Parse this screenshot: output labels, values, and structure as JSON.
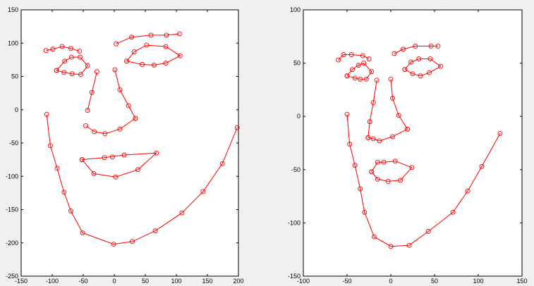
{
  "chart_data": [
    {
      "type": "line",
      "title": "",
      "xlabel": "",
      "ylabel": "",
      "xlim": [
        -150,
        200
      ],
      "ylim": [
        -250,
        150
      ],
      "grid": false,
      "x_ticks": [
        -150,
        -100,
        -50,
        0,
        50,
        100,
        150,
        200
      ],
      "y_ticks": [
        -250,
        -200,
        -150,
        -100,
        -50,
        0,
        50,
        100,
        150
      ],
      "x_tick_labels": [
        "-150",
        "-100",
        "-50",
        "0",
        "50",
        "100",
        "150",
        "200"
      ],
      "y_tick_labels": [
        "-250",
        "-200",
        "-150",
        "-100",
        "-50",
        "0",
        "50",
        "100",
        "150"
      ],
      "series": [
        {
          "label": "jaw",
          "color": "#ff0000",
          "marker": "circle",
          "x": [
            -109,
            -103,
            -92,
            -81,
            -70,
            -51,
            -1,
            29,
            66,
            109,
            143,
            174,
            198
          ],
          "y": [
            -7,
            -54,
            -88,
            -124,
            -152,
            -185,
            -202,
            -198,
            -182,
            -155,
            -123,
            -81,
            -27
          ]
        },
        {
          "label": "left-brow",
          "color": "#ff0000",
          "marker": "circle",
          "x": [
            -110,
            -99,
            -84,
            -70,
            -56
          ],
          "y": [
            89,
            91,
            95,
            92,
            88
          ]
        },
        {
          "label": "right-brow",
          "color": "#ff0000",
          "marker": "circle",
          "x": [
            3,
            28,
            59,
            84,
            105
          ],
          "y": [
            99,
            109,
            112,
            112,
            114
          ]
        },
        {
          "label": "nose-bridge",
          "color": "#ff0000",
          "marker": "circle",
          "x": [
            -28,
            -36,
            -43
          ],
          "y": [
            57,
            26,
            -1
          ]
        },
        {
          "label": "nose-base",
          "color": "#ff0000",
          "marker": "circle",
          "x": [
            -46,
            -32,
            -15,
            9,
            34
          ],
          "y": [
            -24,
            -33,
            -36,
            -29,
            -13
          ]
        },
        {
          "label": "nose-right",
          "color": "#ff0000",
          "marker": "circle",
          "x": [
            1,
            9,
            23,
            34
          ],
          "y": [
            60,
            30,
            6,
            -13
          ]
        },
        {
          "label": "left-eye",
          "color": "#ff0000",
          "marker": "circle",
          "x": [
            -93,
            -80,
            -69,
            -55,
            -43,
            -54,
            -68,
            -81,
            -93
          ],
          "y": [
            59,
            73,
            79,
            79,
            66,
            53,
            54,
            56,
            59
          ]
        },
        {
          "label": "right-eye",
          "color": "#ff0000",
          "marker": "circle",
          "x": [
            20,
            32,
            52,
            83,
            106,
            83,
            64,
            45,
            20
          ],
          "y": [
            73,
            87,
            97,
            95,
            81,
            70,
            67,
            68,
            73
          ]
        },
        {
          "label": "mouth-outer",
          "color": "#ff0000",
          "marker": "circle",
          "x": [
            -52,
            -33,
            2,
            38,
            68,
            16,
            -16,
            -52
          ],
          "y": [
            -75,
            -96,
            -101,
            -90,
            -65,
            -68,
            -72,
            -75
          ]
        },
        {
          "label": "mouth-inner",
          "color": "#ff0000",
          "marker": "circle",
          "x": [
            -3
          ],
          "y": [
            -71
          ]
        }
      ]
    },
    {
      "type": "line",
      "title": "",
      "xlabel": "",
      "ylabel": "",
      "xlim": [
        -100,
        150
      ],
      "ylim": [
        -150,
        100
      ],
      "grid": false,
      "x_ticks": [
        -100,
        -50,
        0,
        50,
        100,
        150
      ],
      "y_ticks": [
        -150,
        -100,
        -50,
        0,
        50,
        100
      ],
      "x_tick_labels": [
        "-100",
        "-50",
        "0",
        "50",
        "100",
        "150"
      ],
      "y_tick_labels": [
        "-150",
        "-100",
        "-50",
        "0",
        "50",
        "100"
      ],
      "series": [
        {
          "label": "jaw",
          "color": "#ff0000",
          "marker": "circle",
          "x": [
            -50,
            -47,
            -41,
            -35,
            -30,
            -19,
            0,
            21,
            43,
            71,
            88,
            104,
            125
          ],
          "y": [
            2,
            -26,
            -46,
            -68,
            -90,
            -113,
            -122,
            -121,
            -108,
            -90,
            -70,
            -47,
            -16
          ]
        },
        {
          "label": "left-brow",
          "color": "#ff0000",
          "marker": "circle",
          "x": [
            -60,
            -54,
            -45,
            -32,
            -25
          ],
          "y": [
            53,
            58,
            58,
            57,
            54
          ]
        },
        {
          "label": "right-brow",
          "color": "#ff0000",
          "marker": "circle",
          "x": [
            4,
            14,
            28,
            46,
            54
          ],
          "y": [
            59,
            63,
            66,
            66,
            66
          ]
        },
        {
          "label": "nose-bridge",
          "color": "#ff0000",
          "marker": "circle",
          "x": [
            -16,
            -20,
            -24,
            -26
          ],
          "y": [
            34,
            13,
            -5,
            -20
          ]
        },
        {
          "label": "nose-base",
          "color": "#ff0000",
          "marker": "circle",
          "x": [
            -26,
            -20,
            -13,
            2,
            19
          ],
          "y": [
            -20,
            -21,
            -23,
            -19,
            -12
          ]
        },
        {
          "label": "nose-right",
          "color": "#ff0000",
          "marker": "circle",
          "x": [
            0,
            2,
            9,
            19
          ],
          "y": [
            35,
            17,
            1,
            -12
          ]
        },
        {
          "label": "left-eye",
          "color": "#ff0000",
          "marker": "circle",
          "x": [
            -50,
            -44,
            -37,
            -31,
            -22,
            -28,
            -35,
            -41,
            -50
          ],
          "y": [
            38,
            44,
            48,
            50,
            42,
            35,
            35,
            36,
            38
          ]
        },
        {
          "label": "right-eye",
          "color": "#ff0000",
          "marker": "circle",
          "x": [
            16,
            23,
            32,
            45,
            57,
            44,
            34,
            25,
            16
          ],
          "y": [
            44,
            51,
            54,
            54,
            47,
            41,
            38,
            40,
            44
          ]
        },
        {
          "label": "mouth-outer",
          "color": "#ff0000",
          "marker": "circle",
          "x": [
            -22,
            -15,
            -3,
            11,
            24,
            5,
            -8,
            -15,
            -22
          ],
          "y": [
            -52,
            -59,
            -61,
            -60,
            -48,
            -42,
            -43,
            -43,
            -52
          ]
        }
      ]
    }
  ]
}
